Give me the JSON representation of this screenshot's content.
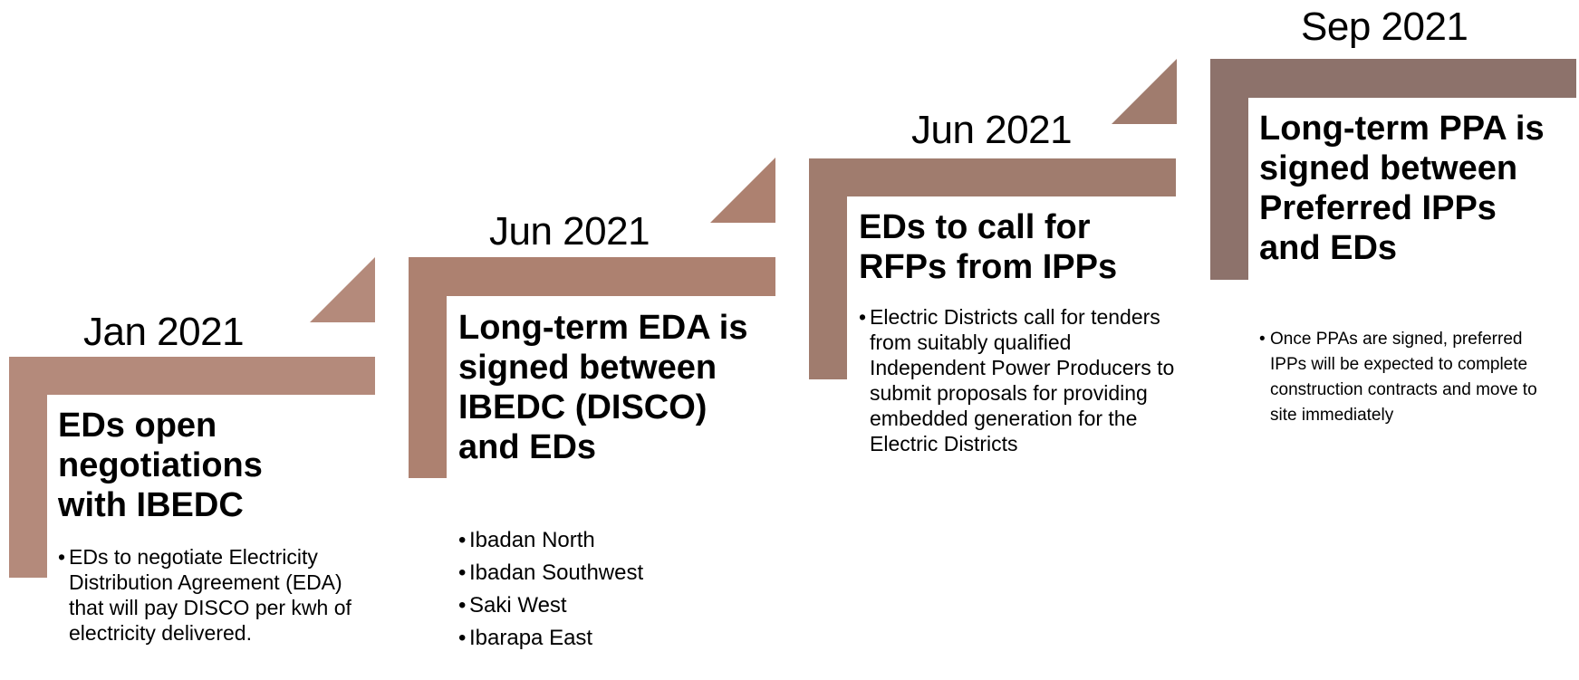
{
  "steps": [
    {
      "date": "Jan 2021",
      "title": "EDs open negotiations with IBEDC",
      "bullets": [
        "EDs to negotiate Electricity Distribution Agreement (EDA) that will pay DISCO per kwh of electricity delivered."
      ],
      "color": "#b48a7b"
    },
    {
      "date": "Jun 2021",
      "title": "Long-term EDA is signed between IBEDC (DISCO) and EDs",
      "bullets": [
        "Ibadan North",
        "Ibadan Southwest",
        "Saki West",
        "Ibarapa East"
      ],
      "color": "#ad8170"
    },
    {
      "date": "Jun 2021",
      "title": "EDs to call for RFPs from IPPs",
      "bullets": [
        "Electric Districts call for tenders from suitably qualified Independent Power Producers to submit proposals for providing embedded generation for the Electric Districts"
      ],
      "color": "#a07c6e"
    },
    {
      "date": "Sep 2021",
      "title": "Long-term PPA is signed between Preferred IPPs and EDs",
      "bullets": [
        "Once PPAs are signed, preferred IPPs will be expected to complete construction contracts and move to site immediately"
      ],
      "color": "#8d726b"
    }
  ]
}
